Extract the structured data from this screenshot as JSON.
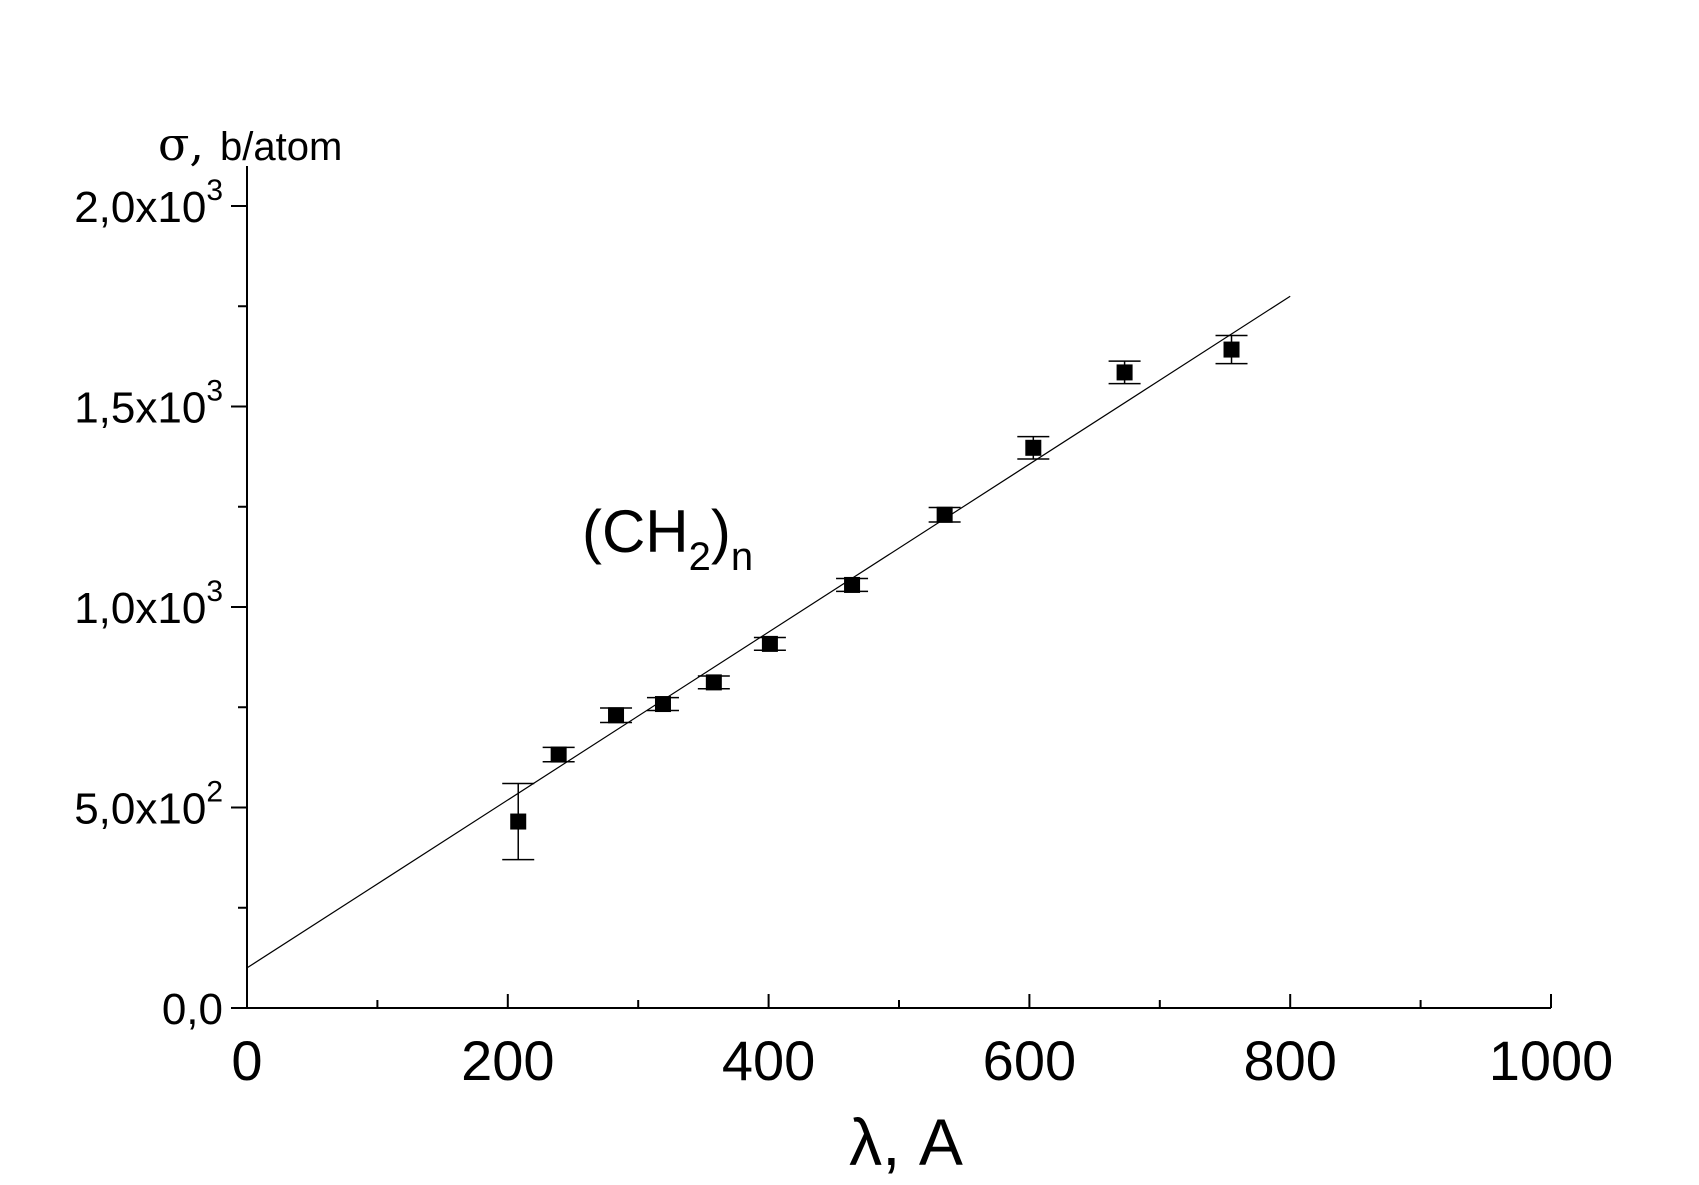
{
  "chart_data": {
    "type": "scatter",
    "ylabel_symbol": "σ,",
    "ylabel_unit": "b/atom",
    "xlabel": "λ, A",
    "annotation": {
      "text_main": "(CH",
      "sub1": "2",
      "close": ")",
      "sub2": "n"
    },
    "xlim": [
      0,
      1000
    ],
    "ylim": [
      0,
      2000
    ],
    "x_ticks": [
      {
        "value": 0,
        "label": "0"
      },
      {
        "value": 200,
        "label": "200"
      },
      {
        "value": 400,
        "label": "400"
      },
      {
        "value": 600,
        "label": "600"
      },
      {
        "value": 800,
        "label": "800"
      },
      {
        "value": 1000,
        "label": "1000"
      }
    ],
    "y_ticks": [
      {
        "value": 0,
        "mant": "0,0",
        "exp": ""
      },
      {
        "value": 500,
        "mant": "5,0x10",
        "exp": "2"
      },
      {
        "value": 1000,
        "mant": "1,0x10",
        "exp": "3"
      },
      {
        "value": 1500,
        "mant": "1,5x10",
        "exp": "3"
      },
      {
        "value": 2000,
        "mant": "2,0x10",
        "exp": "3"
      }
    ],
    "points": [
      {
        "x": 208,
        "y": 465,
        "err": 95
      },
      {
        "x": 239,
        "y": 632,
        "err": 18
      },
      {
        "x": 283,
        "y": 730,
        "err": 18
      },
      {
        "x": 319,
        "y": 758,
        "err": 16
      },
      {
        "x": 358,
        "y": 812,
        "err": 16
      },
      {
        "x": 401,
        "y": 908,
        "err": 16
      },
      {
        "x": 464,
        "y": 1055,
        "err": 16
      },
      {
        "x": 535,
        "y": 1230,
        "err": 18
      },
      {
        "x": 603,
        "y": 1397,
        "err": 28
      },
      {
        "x": 673,
        "y": 1585,
        "err": 28
      },
      {
        "x": 755,
        "y": 1642,
        "err": 35
      }
    ],
    "fit_line": {
      "x": [
        0,
        800
      ],
      "y": [
        100,
        1775
      ]
    }
  }
}
